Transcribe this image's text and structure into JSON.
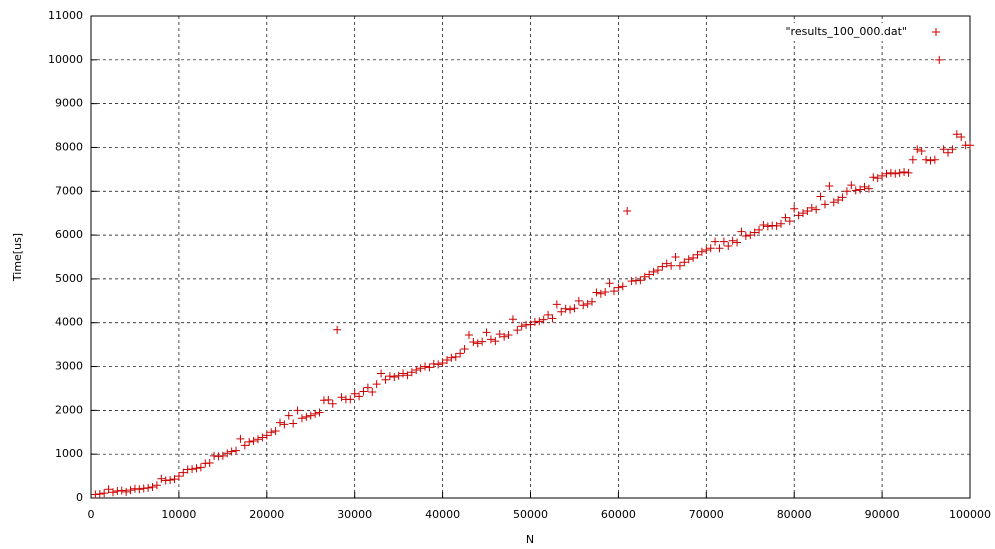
{
  "chart_data": {
    "type": "scatter",
    "x_label": "N",
    "y_label": "Time[us]",
    "xlim": [
      0,
      100000
    ],
    "ylim": [
      0,
      11000
    ],
    "xticks": [
      0,
      10000,
      20000,
      30000,
      40000,
      50000,
      60000,
      70000,
      80000,
      90000,
      100000
    ],
    "yticks": [
      0,
      1000,
      2000,
      3000,
      4000,
      5000,
      6000,
      7000,
      8000,
      9000,
      10000,
      11000
    ],
    "grid": true,
    "legend": "top-right",
    "series": [
      {
        "name": "\"results_100_000.dat\"",
        "color": "#cc0000",
        "x": [
          500,
          1000,
          1500,
          2000,
          2500,
          3000,
          3500,
          4000,
          4500,
          5000,
          5500,
          6000,
          6500,
          7000,
          7500,
          8000,
          8500,
          9000,
          9500,
          10000,
          10500,
          11000,
          11500,
          12000,
          12500,
          13000,
          13500,
          14000,
          14500,
          15000,
          15500,
          16000,
          16500,
          17000,
          17500,
          18000,
          18500,
          19000,
          19500,
          20000,
          20500,
          21000,
          21500,
          22000,
          22500,
          23000,
          23500,
          24000,
          24500,
          25000,
          25500,
          26000,
          26500,
          27000,
          27500,
          28000,
          28500,
          29000,
          29500,
          30000,
          30500,
          31000,
          31500,
          32000,
          32500,
          33000,
          33500,
          34000,
          34500,
          35000,
          35500,
          36000,
          36500,
          37000,
          37500,
          38000,
          38500,
          39000,
          39500,
          40000,
          40500,
          41000,
          41500,
          42000,
          42500,
          43000,
          43500,
          44000,
          44500,
          45000,
          45500,
          46000,
          46500,
          47000,
          47500,
          48000,
          48500,
          49000,
          49500,
          50000,
          50500,
          51000,
          51500,
          52000,
          52500,
          53000,
          53500,
          54000,
          54500,
          55000,
          55500,
          56000,
          56500,
          57000,
          57500,
          58000,
          58500,
          59000,
          59500,
          60000,
          60500,
          61000,
          61500,
          62000,
          62500,
          63000,
          63500,
          64000,
          64500,
          65000,
          65500,
          66000,
          66500,
          67000,
          67500,
          68000,
          68500,
          69000,
          69500,
          70000,
          70500,
          71000,
          71500,
          72000,
          72500,
          73000,
          73500,
          74000,
          74500,
          75000,
          75500,
          76000,
          76500,
          77000,
          77500,
          78000,
          78500,
          79000,
          79500,
          80000,
          80500,
          81000,
          81500,
          82000,
          82500,
          83000,
          83500,
          84000,
          84500,
          85000,
          85500,
          86000,
          86500,
          87000,
          87500,
          88000,
          88500,
          89000,
          89500,
          90000,
          90500,
          91000,
          91500,
          92000,
          92500,
          93000,
          93500,
          94000,
          94500,
          95000,
          95500,
          96000,
          96500,
          97000,
          97500,
          98000,
          98500,
          99000,
          99500,
          100000
        ],
        "values": [
          80,
          90,
          110,
          200,
          130,
          160,
          170,
          140,
          180,
          210,
          200,
          220,
          230,
          250,
          290,
          440,
          400,
          410,
          430,
          500,
          580,
          650,
          660,
          680,
          700,
          790,
          800,
          960,
          950,
          960,
          1020,
          1060,
          1080,
          1350,
          1200,
          1280,
          1300,
          1340,
          1380,
          1430,
          1500,
          1530,
          1720,
          1680,
          1880,
          1700,
          2000,
          1820,
          1850,
          1880,
          1920,
          1950,
          2230,
          2240,
          2150,
          3840,
          2300,
          2250,
          2250,
          2380,
          2320,
          2430,
          2520,
          2420,
          2600,
          2840,
          2700,
          2780,
          2760,
          2790,
          2840,
          2800,
          2870,
          2920,
          2960,
          3000,
          2980,
          3060,
          3050,
          3080,
          3150,
          3200,
          3220,
          3300,
          3400,
          3720,
          3560,
          3530,
          3570,
          3780,
          3620,
          3580,
          3740,
          3680,
          3720,
          4080,
          3830,
          3920,
          3950,
          3960,
          4020,
          4030,
          4070,
          4180,
          4100,
          4420,
          4250,
          4320,
          4300,
          4330,
          4500,
          4400,
          4430,
          4480,
          4690,
          4660,
          4700,
          4900,
          4720,
          4800,
          4830,
          6550,
          4950,
          4960,
          4970,
          5050,
          5100,
          5160,
          5200,
          5280,
          5350,
          5300,
          5500,
          5300,
          5380,
          5450,
          5480,
          5550,
          5620,
          5660,
          5700,
          5850,
          5700,
          5850,
          5750,
          5870,
          5830,
          6080,
          5980,
          6000,
          6060,
          6120,
          6230,
          6200,
          6220,
          6210,
          6260,
          6400,
          6320,
          6600,
          6450,
          6500,
          6550,
          6620,
          6580,
          6880,
          6700,
          7120,
          6750,
          6800,
          6860,
          7000,
          7140,
          7020,
          7040,
          7100,
          7060,
          7320,
          7300,
          7350,
          7400,
          7420,
          7400,
          7420,
          7440,
          7420,
          7720,
          7960,
          7920,
          7720,
          7700,
          7720,
          10000,
          7960,
          7880,
          7960,
          8300,
          8240,
          8050,
          8050
        ]
      }
    ]
  }
}
